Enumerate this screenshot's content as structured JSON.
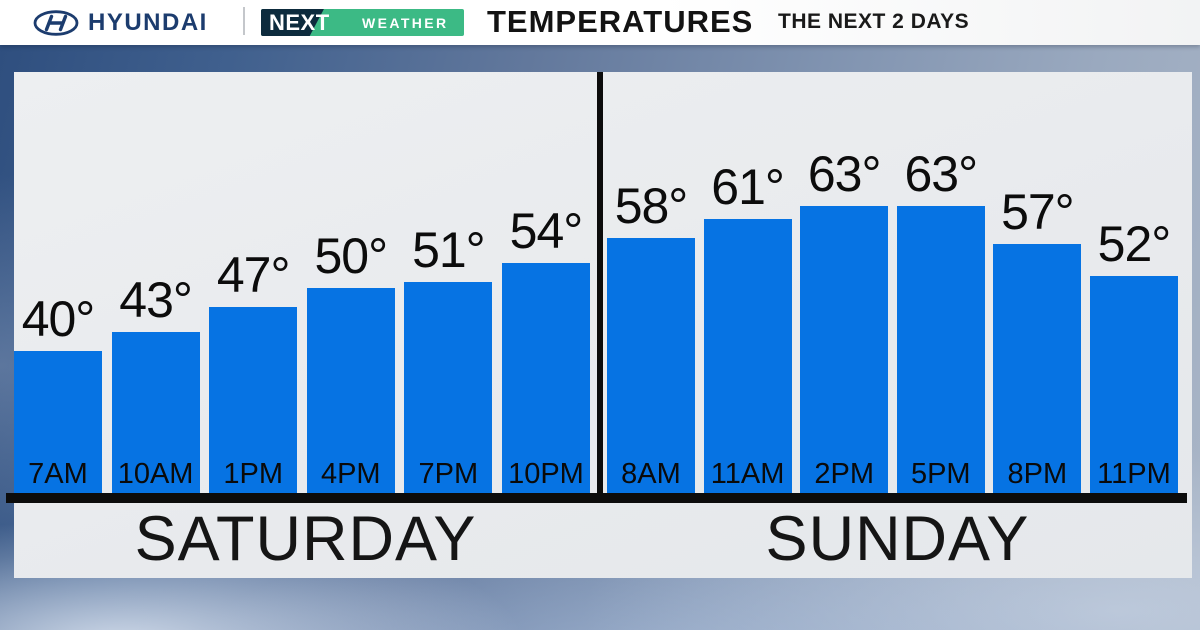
{
  "header": {
    "brand": "HYUNDAI",
    "badge_next": "NEXT",
    "badge_weather": "WEATHER",
    "title": "TEMPERATURES",
    "subtitle": "THE NEXT 2 DAYS"
  },
  "colors": {
    "bar_blue": "#0673e3",
    "panel_gray": "#e9ebee",
    "badge_green": "#3cba85",
    "badge_navy": "#0d2b3d",
    "hyundai_navy": "#1c3c6e",
    "axis_black": "#0c0c0c",
    "sky_dark": "#2e4e7e",
    "sky_light": "#aab6c7"
  },
  "chart_data": {
    "type": "bar",
    "title": "TEMPERATURES",
    "subtitle": "THE NEXT 2 DAYS",
    "unit": "°F",
    "value_suffix": "°",
    "ylim": [
      17.5,
      84.3
    ],
    "grid": false,
    "legend": "none",
    "bar_label_position": "above",
    "category_label_position": "inside-bottom",
    "days": [
      {
        "label": "SATURDAY",
        "categories": [
          "7AM",
          "10AM",
          "1PM",
          "4PM",
          "7PM",
          "10PM"
        ],
        "values": [
          40,
          43,
          47,
          50,
          51,
          54
        ]
      },
      {
        "label": "SUNDAY",
        "categories": [
          "8AM",
          "11AM",
          "2PM",
          "5PM",
          "8PM",
          "11PM"
        ],
        "values": [
          58,
          61,
          63,
          63,
          57,
          52
        ]
      }
    ]
  }
}
